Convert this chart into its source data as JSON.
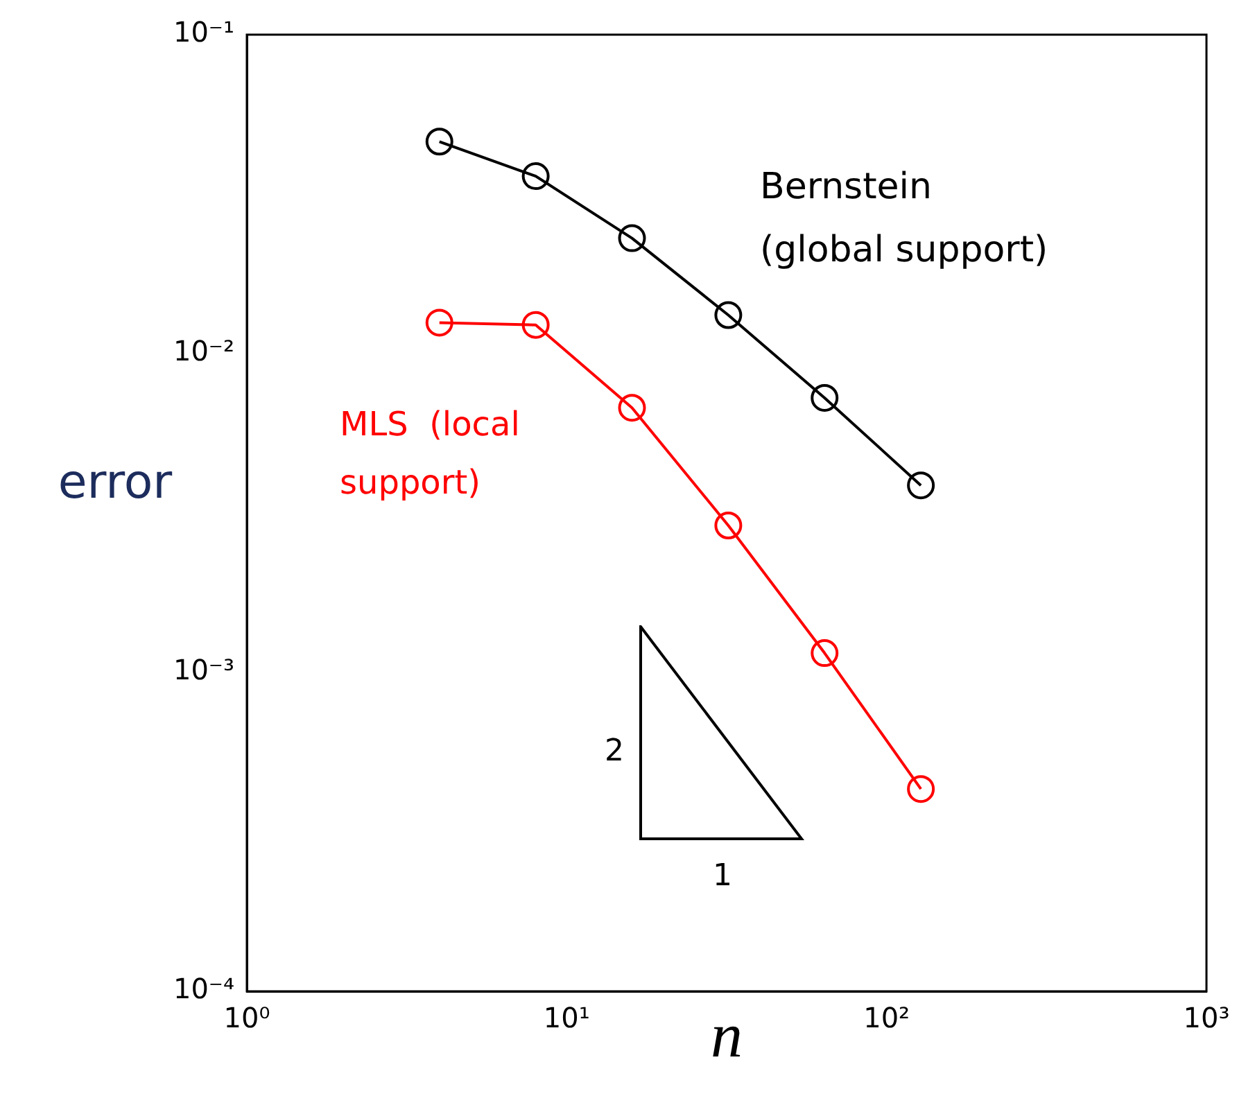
{
  "chart_data": {
    "type": "line",
    "log": "xy",
    "xlabel": "n",
    "ylabel": "error",
    "xlim": [
      1,
      1000
    ],
    "ylim": [
      0.0001,
      0.1
    ],
    "xticks": [
      {
        "value": 1,
        "label": "10⁰"
      },
      {
        "value": 10,
        "label": "10¹"
      },
      {
        "value": 100,
        "label": "10²"
      },
      {
        "value": 1000,
        "label": "10³"
      }
    ],
    "yticks": [
      {
        "value": 0.0001,
        "label": "10⁻⁴"
      },
      {
        "value": 0.001,
        "label": "10⁻³"
      },
      {
        "value": 0.01,
        "label": "10⁻²"
      },
      {
        "value": 0.1,
        "label": "10⁻¹"
      }
    ],
    "x": [
      4,
      8,
      16,
      32,
      64,
      128
    ],
    "series": [
      {
        "name": "Bernstein\n(global support)",
        "color": "#000000",
        "values": [
          0.0462,
          0.036,
          0.023,
          0.0132,
          0.00726,
          0.00386
        ]
      },
      {
        "name": "MLS  (local\nsupport)",
        "color": "#ff0000",
        "values": [
          0.0125,
          0.0123,
          0.00676,
          0.00289,
          0.00115,
          0.000431
        ]
      }
    ],
    "annotations": [
      "2",
      "1"
    ],
    "marker": "circle",
    "grid": false,
    "legend": false
  }
}
